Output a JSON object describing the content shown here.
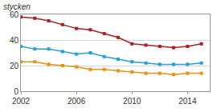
{
  "chart_data": {
    "type": "line",
    "ylabel": "stycken",
    "x": [
      2002,
      2003,
      2004,
      2005,
      2006,
      2007,
      2008,
      2009,
      2010,
      2011,
      2012,
      2013,
      2014,
      2015
    ],
    "series": [
      {
        "color": "#a82222",
        "values": [
          58,
          57,
          55,
          52,
          49,
          48,
          45,
          42,
          37,
          36,
          35,
          34,
          35,
          37
        ]
      },
      {
        "color": "#2a9ed8",
        "values": [
          35,
          33,
          33,
          31,
          29,
          30,
          27,
          25,
          23,
          22,
          21,
          21,
          21,
          22
        ]
      },
      {
        "color": "#e8901a",
        "values": [
          23,
          23,
          21,
          20,
          19,
          17,
          17,
          16,
          15,
          14,
          14,
          13,
          14,
          14
        ]
      }
    ],
    "marker": "square",
    "xlim": [
      2002,
      2015.6
    ],
    "ylim": [
      0,
      60
    ],
    "xticks": [
      2002,
      2006,
      2010,
      2014
    ],
    "yticks": [
      0,
      20,
      40,
      60
    ],
    "grid": true
  }
}
